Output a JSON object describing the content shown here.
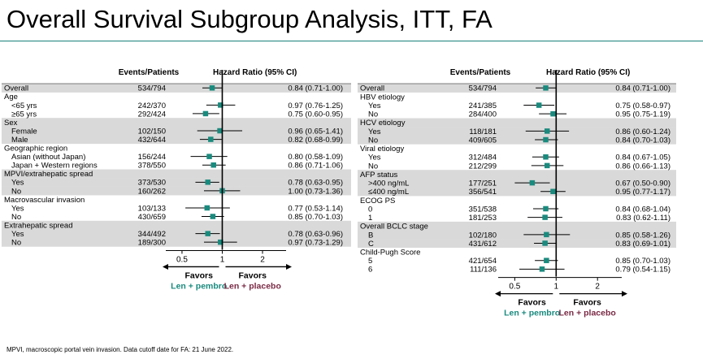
{
  "title": "Overall Survival Subgroup Analysis, ITT, FA",
  "footnote": "MPVI, macroscopic portal vein invasion. Data cutoff date for FA: 21 June 2022.",
  "colors": {
    "marker": "#1a8a7e",
    "shade": "#d9d9d9",
    "favors_left": "#1a8a7e",
    "favors_right": "#7a2a45"
  },
  "chart_data": [
    {
      "type": "forest",
      "header": {
        "events": "Events/Patients",
        "hr": "Hazard  Ratio (95% CI)"
      },
      "xscale": "log",
      "xlim": [
        0.4,
        3.0
      ],
      "ticks": [
        0.5,
        1,
        2
      ],
      "tick_labels": [
        "0.5",
        "1",
        "2"
      ],
      "favors": {
        "label": "Favors",
        "left": "Len + pembro",
        "right": "Len + placebo"
      },
      "rows": [
        {
          "label": "Overall",
          "indent": false,
          "shaded": true,
          "events": "534/794",
          "hr": 0.84,
          "lo": 0.71,
          "hi": 1.0,
          "ci_text": "0.84 (0.71-1.00)"
        },
        {
          "label": "Age",
          "indent": false,
          "shaded": false
        },
        {
          "label": "<65 yrs",
          "indent": true,
          "shaded": false,
          "events": "242/370",
          "hr": 0.97,
          "lo": 0.76,
          "hi": 1.25,
          "ci_text": "0.97 (0.76-1.25)"
        },
        {
          "label": "≥65 yrs",
          "indent": true,
          "shaded": false,
          "events": "292/424",
          "hr": 0.75,
          "lo": 0.6,
          "hi": 0.95,
          "ci_text": "0.75 (0.60-0.95)"
        },
        {
          "label": "Sex",
          "indent": false,
          "shaded": true
        },
        {
          "label": "Female",
          "indent": true,
          "shaded": true,
          "events": "102/150",
          "hr": 0.96,
          "lo": 0.65,
          "hi": 1.41,
          "ci_text": "0.96 (0.65-1.41)"
        },
        {
          "label": "Male",
          "indent": true,
          "shaded": true,
          "events": "432/644",
          "hr": 0.82,
          "lo": 0.68,
          "hi": 0.99,
          "ci_text": "0.82 (0.68-0.99)"
        },
        {
          "label": "Geographic region",
          "indent": false,
          "shaded": false
        },
        {
          "label": "Asian (without Japan)",
          "indent": true,
          "shaded": false,
          "events": "156/244",
          "hr": 0.8,
          "lo": 0.58,
          "hi": 1.09,
          "ci_text": "0.80 (0.58-1.09)"
        },
        {
          "label": "Japan + Western regions",
          "indent": true,
          "shaded": false,
          "events": "378/550",
          "hr": 0.86,
          "lo": 0.71,
          "hi": 1.06,
          "ci_text": "0.86 (0.71-1.06)"
        },
        {
          "label": "MPVI/extrahepatic spread",
          "indent": false,
          "shaded": true
        },
        {
          "label": "Yes",
          "indent": true,
          "shaded": true,
          "events": "373/530",
          "hr": 0.78,
          "lo": 0.63,
          "hi": 0.95,
          "ci_text": "0.78 (0.63-0.95)"
        },
        {
          "label": "No",
          "indent": true,
          "shaded": true,
          "events": "160/262",
          "hr": 1.0,
          "lo": 0.73,
          "hi": 1.36,
          "ci_text": "1.00 (0.73-1.36)"
        },
        {
          "label": "Macrovascular invasion",
          "indent": false,
          "shaded": false
        },
        {
          "label": "Yes",
          "indent": true,
          "shaded": false,
          "events": "103/133",
          "hr": 0.77,
          "lo": 0.53,
          "hi": 1.14,
          "ci_text": "0.77 (0.53-1.14)"
        },
        {
          "label": "No",
          "indent": true,
          "shaded": false,
          "events": "430/659",
          "hr": 0.85,
          "lo": 0.7,
          "hi": 1.03,
          "ci_text": "0.85 (0.70-1.03)"
        },
        {
          "label": "Extrahepatic spread",
          "indent": false,
          "shaded": true
        },
        {
          "label": "Yes",
          "indent": true,
          "shaded": true,
          "events": "344/492",
          "hr": 0.78,
          "lo": 0.63,
          "hi": 0.96,
          "ci_text": "0.78 (0.63-0.96)"
        },
        {
          "label": "No",
          "indent": true,
          "shaded": true,
          "events": "189/300",
          "hr": 0.97,
          "lo": 0.73,
          "hi": 1.29,
          "ci_text": "0.97 (0.73-1.29)"
        }
      ]
    },
    {
      "type": "forest",
      "header": {
        "events": "Events/Patients",
        "hr": "Hazard  Ratio (95% CI)"
      },
      "xscale": "log",
      "xlim": [
        0.4,
        3.0
      ],
      "ticks": [
        0.5,
        1,
        2
      ],
      "tick_labels": [
        "0.5",
        "1",
        "2"
      ],
      "favors": {
        "label": "Favors",
        "left": "Len + pembro",
        "right": "Len + placebo"
      },
      "rows": [
        {
          "label": "Overall",
          "indent": false,
          "shaded": true,
          "events": "534/794",
          "hr": 0.84,
          "lo": 0.71,
          "hi": 1.0,
          "ci_text": "0.84 (0.71-1.00)"
        },
        {
          "label": "HBV etiology",
          "indent": false,
          "shaded": false
        },
        {
          "label": "Yes",
          "indent": true,
          "shaded": false,
          "events": "241/385",
          "hr": 0.75,
          "lo": 0.58,
          "hi": 0.97,
          "ci_text": "0.75 (0.58-0.97)"
        },
        {
          "label": "No",
          "indent": true,
          "shaded": false,
          "events": "284/400",
          "hr": 0.95,
          "lo": 0.75,
          "hi": 1.19,
          "ci_text": "0.95 (0.75-1.19)"
        },
        {
          "label": "HCV etiology",
          "indent": false,
          "shaded": true
        },
        {
          "label": "Yes",
          "indent": true,
          "shaded": true,
          "events": "118/181",
          "hr": 0.86,
          "lo": 0.6,
          "hi": 1.24,
          "ci_text": "0.86 (0.60-1.24)"
        },
        {
          "label": "No",
          "indent": true,
          "shaded": true,
          "events": "409/605",
          "hr": 0.84,
          "lo": 0.7,
          "hi": 1.03,
          "ci_text": "0.84 (0.70-1.03)"
        },
        {
          "label": "Viral etiology",
          "indent": false,
          "shaded": false
        },
        {
          "label": "Yes",
          "indent": true,
          "shaded": false,
          "events": "312/484",
          "hr": 0.84,
          "lo": 0.67,
          "hi": 1.05,
          "ci_text": "0.84 (0.67-1.05)"
        },
        {
          "label": "No",
          "indent": true,
          "shaded": false,
          "events": "212/299",
          "hr": 0.86,
          "lo": 0.66,
          "hi": 1.13,
          "ci_text": "0.86 (0.66-1.13)"
        },
        {
          "label": "AFP status",
          "indent": false,
          "shaded": true
        },
        {
          "label": ">400 ng/mL",
          "indent": true,
          "shaded": true,
          "events": "177/251",
          "hr": 0.67,
          "lo": 0.5,
          "hi": 0.9,
          "ci_text": "0.67 (0.50-0.90)"
        },
        {
          "label": "≤400 ng/mL",
          "indent": true,
          "shaded": true,
          "events": "356/541",
          "hr": 0.95,
          "lo": 0.77,
          "hi": 1.17,
          "ci_text": "0.95 (0.77-1.17)"
        },
        {
          "label": "ECOG PS",
          "indent": false,
          "shaded": false
        },
        {
          "label": "0",
          "indent": true,
          "shaded": false,
          "events": "351/538",
          "hr": 0.84,
          "lo": 0.68,
          "hi": 1.04,
          "ci_text": "0.84 (0.68-1.04)"
        },
        {
          "label": "1",
          "indent": true,
          "shaded": false,
          "events": "181/253",
          "hr": 0.83,
          "lo": 0.62,
          "hi": 1.11,
          "ci_text": "0.83 (0.62-1.11)"
        },
        {
          "label": "Overall BCLC stage",
          "indent": false,
          "shaded": true
        },
        {
          "label": "B",
          "indent": true,
          "shaded": true,
          "events": "102/180",
          "hr": 0.85,
          "lo": 0.58,
          "hi": 1.26,
          "ci_text": "0.85 (0.58-1.26)"
        },
        {
          "label": "C",
          "indent": true,
          "shaded": true,
          "events": "431/612",
          "hr": 0.83,
          "lo": 0.69,
          "hi": 1.01,
          "ci_text": "0.83 (0.69-1.01)"
        },
        {
          "label": "Child-Pugh Score",
          "indent": false,
          "shaded": false
        },
        {
          "label": "5",
          "indent": true,
          "shaded": false,
          "events": "421/654",
          "hr": 0.85,
          "lo": 0.7,
          "hi": 1.03,
          "ci_text": "0.85 (0.70-1.03)"
        },
        {
          "label": "6",
          "indent": true,
          "shaded": false,
          "events": "111/136",
          "hr": 0.79,
          "lo": 0.54,
          "hi": 1.15,
          "ci_text": "0.79 (0.54-1.15)"
        }
      ]
    }
  ]
}
